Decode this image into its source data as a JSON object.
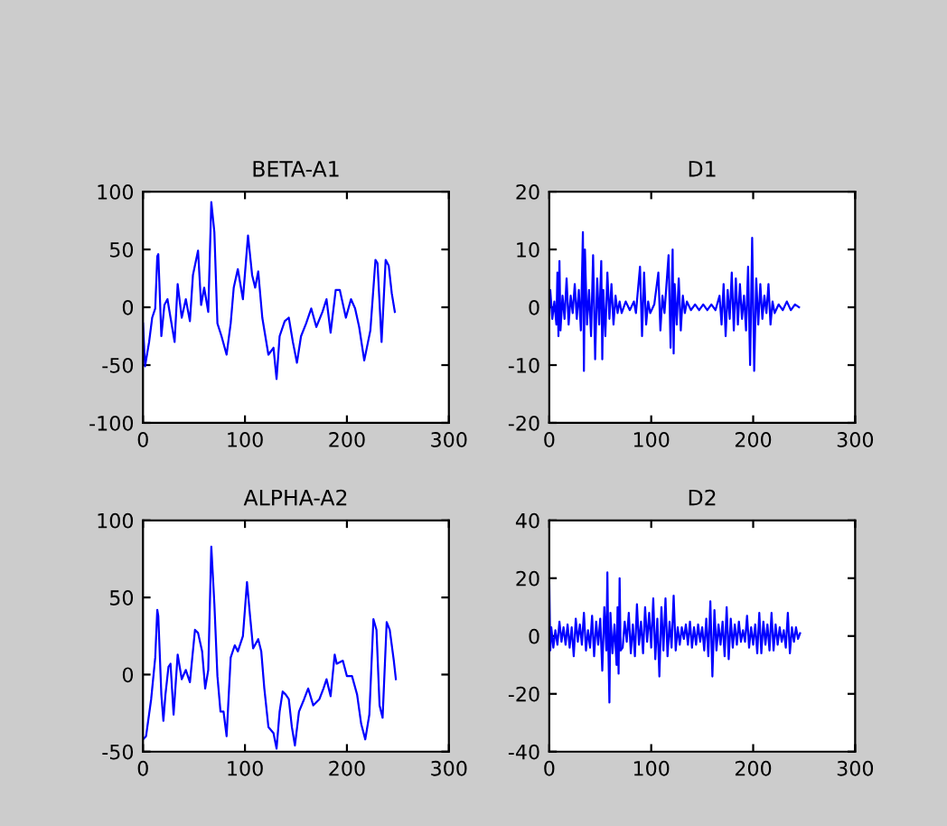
{
  "chart_data": [
    {
      "type": "line",
      "title": "BETA-A1",
      "xlim": [
        0,
        300
      ],
      "xticks": [
        0,
        100,
        200,
        300
      ],
      "ylim": [
        -100,
        100
      ],
      "yticks": [
        -100,
        -50,
        0,
        50,
        100
      ],
      "grid": false,
      "legend": false,
      "series": [
        {
          "color": "#0000ff",
          "x": [
            0,
            2,
            6,
            9,
            12,
            14,
            15,
            18,
            21,
            24,
            27,
            31,
            34,
            38,
            42,
            46,
            49,
            54,
            57,
            60,
            64,
            67,
            70,
            73,
            77,
            82,
            86,
            89,
            93,
            98,
            103,
            107,
            110,
            113,
            117,
            123,
            128,
            131,
            134,
            139,
            143,
            147,
            151,
            155,
            160,
            165,
            170,
            176,
            180,
            184,
            189,
            193,
            199,
            204,
            208,
            212,
            217,
            223,
            228,
            230,
            234,
            238,
            241,
            244,
            247
          ],
          "values": [
            -14,
            -51,
            -30,
            -9,
            -1,
            44,
            46,
            -25,
            2,
            7,
            -9,
            -30,
            20,
            -9,
            7,
            -12,
            28,
            49,
            2,
            17,
            -4,
            91,
            65,
            -14,
            -25,
            -41,
            -14,
            17,
            33,
            7,
            62,
            28,
            17,
            31,
            -9,
            -41,
            -35,
            -62,
            -25,
            -12,
            -9,
            -30,
            -48,
            -25,
            -14,
            -1,
            -17,
            -4,
            7,
            -22,
            15,
            15,
            -9,
            7,
            -1,
            -17,
            -46,
            -20,
            41,
            38,
            -30,
            41,
            36,
            12,
            -4
          ]
        }
      ]
    },
    {
      "type": "line",
      "title": "D1",
      "xlim": [
        0,
        300
      ],
      "xticks": [
        0,
        100,
        200,
        300
      ],
      "ylim": [
        -20,
        20
      ],
      "yticks": [
        -20,
        -10,
        0,
        10,
        20
      ],
      "grid": false,
      "legend": false,
      "series": [
        {
          "color": "#0000ff",
          "x": [
            0,
            1,
            3,
            5,
            7,
            8,
            9,
            10,
            11,
            13,
            15,
            17,
            19,
            21,
            23,
            25,
            27,
            29,
            31,
            33,
            34,
            35,
            37,
            39,
            41,
            43,
            45,
            47,
            49,
            51,
            52,
            53,
            55,
            57,
            59,
            61,
            63,
            65,
            67,
            69,
            71,
            75,
            79,
            83,
            85,
            89,
            91,
            93,
            95,
            97,
            99,
            103,
            107,
            109,
            111,
            113,
            117,
            119,
            121,
            122,
            123,
            125,
            127,
            129,
            131,
            133,
            135,
            139,
            143,
            147,
            151,
            155,
            159,
            163,
            167,
            169,
            171,
            173,
            175,
            177,
            179,
            181,
            183,
            185,
            187,
            189,
            191,
            193,
            195,
            197,
            199,
            201,
            203,
            205,
            207,
            209,
            211,
            213,
            215,
            217,
            219,
            221,
            225,
            229,
            233,
            237,
            241,
            245
          ],
          "values": [
            0,
            3,
            -2,
            1,
            -3,
            6,
            -5,
            8,
            -4,
            2,
            -2,
            5,
            -3,
            2,
            -1,
            4,
            -2,
            3,
            -4,
            13,
            -11,
            10,
            -3,
            3,
            -5,
            9,
            -9,
            5,
            -3,
            8,
            -9,
            3,
            -5,
            6,
            -2,
            4,
            -3,
            2,
            -1,
            1,
            -1,
            1,
            -0.5,
            1,
            -1,
            7,
            -5,
            6,
            -3,
            1,
            -1,
            0.5,
            6,
            -4,
            2,
            -1,
            9,
            -7,
            10,
            -8,
            4,
            -3,
            5,
            -4,
            2,
            -1,
            1,
            -0.5,
            0.5,
            -0.5,
            0.5,
            -0.5,
            0.5,
            -0.5,
            2,
            -3,
            4,
            -5,
            3,
            -2,
            6,
            -4,
            5,
            -3,
            4,
            -2,
            2,
            -4,
            7,
            -10,
            12,
            -11,
            5,
            -3,
            4,
            -2,
            2,
            -1,
            4,
            -3,
            1,
            -1,
            0.5,
            -0.5,
            1,
            -0.5,
            0.5,
            0
          ]
        }
      ]
    },
    {
      "type": "line",
      "title": "ALPHA-A2",
      "xlim": [
        0,
        300
      ],
      "xticks": [
        0,
        100,
        200,
        300
      ],
      "ylim": [
        -50,
        100
      ],
      "yticks": [
        -50,
        0,
        50,
        100
      ],
      "grid": false,
      "legend": false,
      "series": [
        {
          "color": "#0000ff",
          "x": [
            0,
            3,
            8,
            12,
            14,
            15,
            18,
            20,
            22,
            25,
            27,
            30,
            34,
            38,
            42,
            46,
            51,
            54,
            58,
            61,
            64,
            67,
            70,
            73,
            76,
            79,
            82,
            86,
            90,
            93,
            98,
            102,
            105,
            108,
            113,
            116,
            119,
            123,
            128,
            131,
            134,
            137,
            140,
            143,
            146,
            149,
            153,
            158,
            162,
            167,
            173,
            177,
            180,
            184,
            188,
            190,
            196,
            200,
            205,
            210,
            214,
            218,
            222,
            226,
            229,
            232,
            235,
            239,
            242,
            246,
            248
          ],
          "values": [
            -42,
            -40,
            -16,
            11,
            42,
            38,
            -13,
            -30,
            -13,
            5,
            7,
            -26,
            13,
            -3,
            3,
            -5,
            29,
            27,
            15,
            -9,
            3,
            83,
            46,
            -1,
            -24,
            -24,
            -40,
            11,
            19,
            15,
            25,
            60,
            38,
            17,
            23,
            15,
            -9,
            -34,
            -38,
            -48,
            -24,
            -11,
            -13,
            -16,
            -34,
            -46,
            -24,
            -16,
            -9,
            -20,
            -16,
            -9,
            -3,
            -14,
            13,
            7,
            9,
            -1,
            -1,
            -13,
            -32,
            -42,
            -26,
            36,
            29,
            -20,
            -28,
            34,
            29,
            9,
            -3
          ]
        }
      ]
    },
    {
      "type": "line",
      "title": "D2",
      "xlim": [
        0,
        300
      ],
      "xticks": [
        0,
        100,
        200,
        300
      ],
      "ylim": [
        -40,
        40
      ],
      "yticks": [
        -40,
        -20,
        0,
        20,
        40
      ],
      "grid": false,
      "legend": false,
      "series": [
        {
          "color": "#0000ff",
          "x": [
            0,
            1,
            2,
            4,
            6,
            8,
            10,
            12,
            14,
            16,
            18,
            20,
            22,
            24,
            26,
            28,
            30,
            32,
            34,
            36,
            38,
            40,
            42,
            44,
            46,
            48,
            50,
            52,
            54,
            56,
            57,
            58,
            59,
            60,
            62,
            64,
            66,
            67,
            68,
            69,
            70,
            72,
            74,
            76,
            78,
            80,
            82,
            84,
            86,
            88,
            90,
            92,
            94,
            96,
            98,
            100,
            102,
            104,
            106,
            108,
            110,
            112,
            114,
            116,
            118,
            120,
            122,
            124,
            126,
            128,
            130,
            132,
            134,
            136,
            138,
            140,
            142,
            144,
            146,
            148,
            150,
            152,
            154,
            156,
            158,
            160,
            162,
            164,
            166,
            168,
            170,
            172,
            174,
            176,
            178,
            180,
            182,
            184,
            186,
            188,
            190,
            192,
            194,
            196,
            198,
            200,
            202,
            204,
            206,
            208,
            210,
            212,
            214,
            216,
            218,
            220,
            222,
            224,
            226,
            228,
            230,
            232,
            234,
            236,
            238,
            240,
            242,
            244,
            246
          ],
          "values": [
            20,
            -5,
            3,
            -4,
            2,
            -3,
            5,
            -2,
            3,
            -3,
            4,
            -4,
            3,
            -7,
            6,
            -2,
            4,
            -3,
            8,
            -5,
            2,
            -4,
            7,
            -7,
            5,
            -3,
            6,
            -12,
            10,
            -5,
            22,
            -5,
            -23,
            8,
            -6,
            4,
            -10,
            10,
            -13,
            20,
            -5,
            -4,
            5,
            -2,
            8,
            -6,
            4,
            -7,
            11,
            -3,
            5,
            -6,
            10,
            -2,
            8,
            -4,
            13,
            -8,
            6,
            -14,
            10,
            -5,
            13,
            -7,
            5,
            -4,
            14,
            -5,
            3,
            -3,
            3,
            -1,
            4,
            -3,
            5,
            -4,
            3,
            -3,
            4,
            -2,
            3,
            -5,
            6,
            -7,
            12,
            -14,
            9,
            -5,
            4,
            -3,
            5,
            -7,
            10,
            -8,
            6,
            -4,
            4,
            -3,
            5,
            -2,
            2,
            -2,
            7,
            -4,
            3,
            -3,
            4,
            -6,
            8,
            -6,
            5,
            -3,
            4,
            -5,
            8,
            -5,
            4,
            -3,
            3,
            -2,
            2,
            -4,
            8,
            -6,
            3,
            -2,
            3,
            -1,
            1
          ]
        }
      ]
    }
  ]
}
